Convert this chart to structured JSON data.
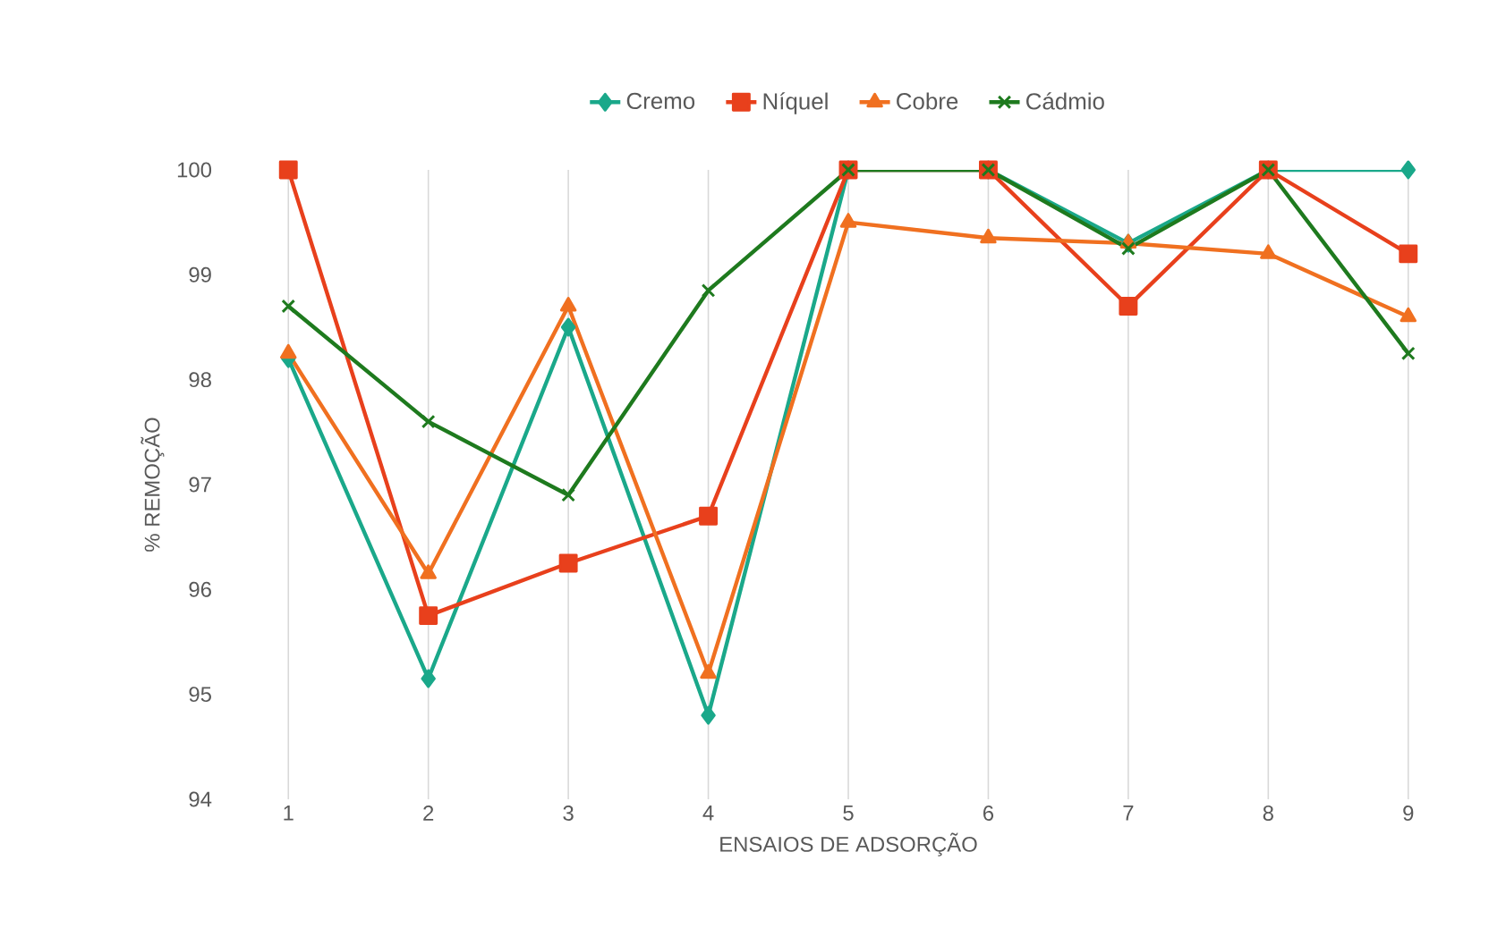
{
  "chart_data": {
    "type": "line",
    "xlabel": "ENSAIOS DE ADSORÇÃO",
    "ylabel": "% REMOÇÃO",
    "categories": [
      "1",
      "2",
      "3",
      "4",
      "5",
      "6",
      "7",
      "8",
      "9"
    ],
    "ylim": [
      94,
      100
    ],
    "yticks": [
      94,
      95,
      96,
      97,
      98,
      99,
      100
    ],
    "grid": "x",
    "legend": "top",
    "series": [
      {
        "name": "Cremo",
        "color": "#1aa88a",
        "marker": "diamond",
        "values": [
          98.2,
          95.15,
          98.5,
          94.8,
          100,
          100,
          99.3,
          100,
          100
        ]
      },
      {
        "name": "Níquel",
        "color": "#e8401c",
        "marker": "square",
        "values": [
          100,
          95.75,
          96.25,
          96.7,
          100,
          100,
          98.7,
          100,
          99.2
        ]
      },
      {
        "name": "Cobre",
        "color": "#f07020",
        "marker": "triangle",
        "values": [
          98.25,
          96.15,
          98.7,
          95.2,
          99.5,
          99.35,
          99.3,
          99.2,
          98.6
        ]
      },
      {
        "name": "Cádmio",
        "color": "#1e7a1e",
        "marker": "cross",
        "values": [
          98.7,
          97.6,
          96.9,
          98.85,
          100,
          100,
          99.25,
          100,
          98.25
        ]
      }
    ]
  }
}
